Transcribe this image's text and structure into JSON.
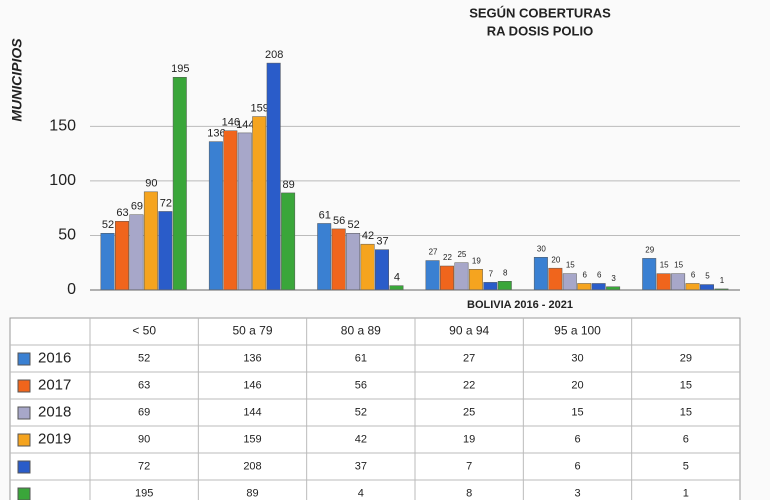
{
  "chart_data": {
    "type": "bar",
    "title": "SEGÚN COBERTURAS",
    "subtitle": "RA DOSIS POLIO",
    "footer": "BOLIVIA 2016 - 2021",
    "y_label": "MUNICIPIOS",
    "categories": [
      "< 50",
      "50 a 79",
      "80 a 89",
      "90 a 94",
      "95 a 100",
      null
    ],
    "series": [
      {
        "name": "2016",
        "color": "#3a80d2",
        "values": [
          52,
          136,
          61,
          27,
          30,
          29
        ]
      },
      {
        "name": "2017",
        "color": "#f0651c",
        "values": [
          63,
          146,
          56,
          22,
          20,
          15
        ]
      },
      {
        "name": "2018",
        "color": "#a7a7c9",
        "values": [
          69,
          144,
          52,
          25,
          15,
          15
        ]
      },
      {
        "name": "2019",
        "color": "#f5a41f",
        "values": [
          90,
          159,
          42,
          19,
          6,
          6
        ]
      },
      {
        "color": "#2a5cc9",
        "values": [
          72,
          208,
          37,
          7,
          6,
          5
        ]
      },
      {
        "color": "#3aa63a",
        "values": [
          195,
          89,
          4,
          8,
          3,
          1
        ]
      }
    ],
    "ylim": [
      0,
      220
    ],
    "yticks": [
      0,
      50,
      100,
      150
    ],
    "grid": true
  }
}
